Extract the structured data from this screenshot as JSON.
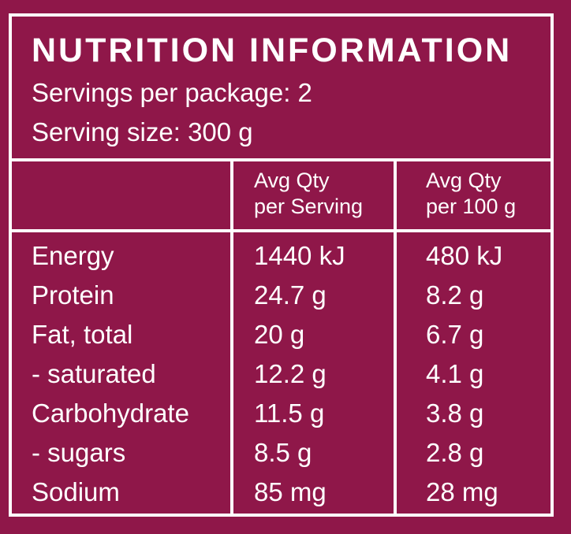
{
  "panel": {
    "title": "NUTRITION INFORMATION",
    "servings_per_package": "Servings per package: 2",
    "serving_size": "Serving size: 300 g"
  },
  "columns": {
    "per_serving": [
      "Avg Qty",
      "per Serving"
    ],
    "per_100g": [
      "Avg Qty",
      "per 100 g"
    ]
  },
  "rows": [
    {
      "nutrient": "Energy",
      "per_serving": "1440 kJ",
      "per_100g": "480 kJ"
    },
    {
      "nutrient": "Protein",
      "per_serving": "24.7 g",
      "per_100g": "8.2 g"
    },
    {
      "nutrient": "Fat, total",
      "per_serving": "20 g",
      "per_100g": "6.7 g"
    },
    {
      "nutrient": "- saturated",
      "per_serving": "12.2 g",
      "per_100g": "4.1 g"
    },
    {
      "nutrient": "Carbohydrate",
      "per_serving": "11.5 g",
      "per_100g": "3.8 g"
    },
    {
      "nutrient": "- sugars",
      "per_serving": "8.5 g",
      "per_100g": "2.8 g"
    },
    {
      "nutrient": "Sodium",
      "per_serving": "85 mg",
      "per_100g": "28 mg"
    }
  ],
  "colors": {
    "background": "#8f1749",
    "foreground": "#ffffff"
  }
}
